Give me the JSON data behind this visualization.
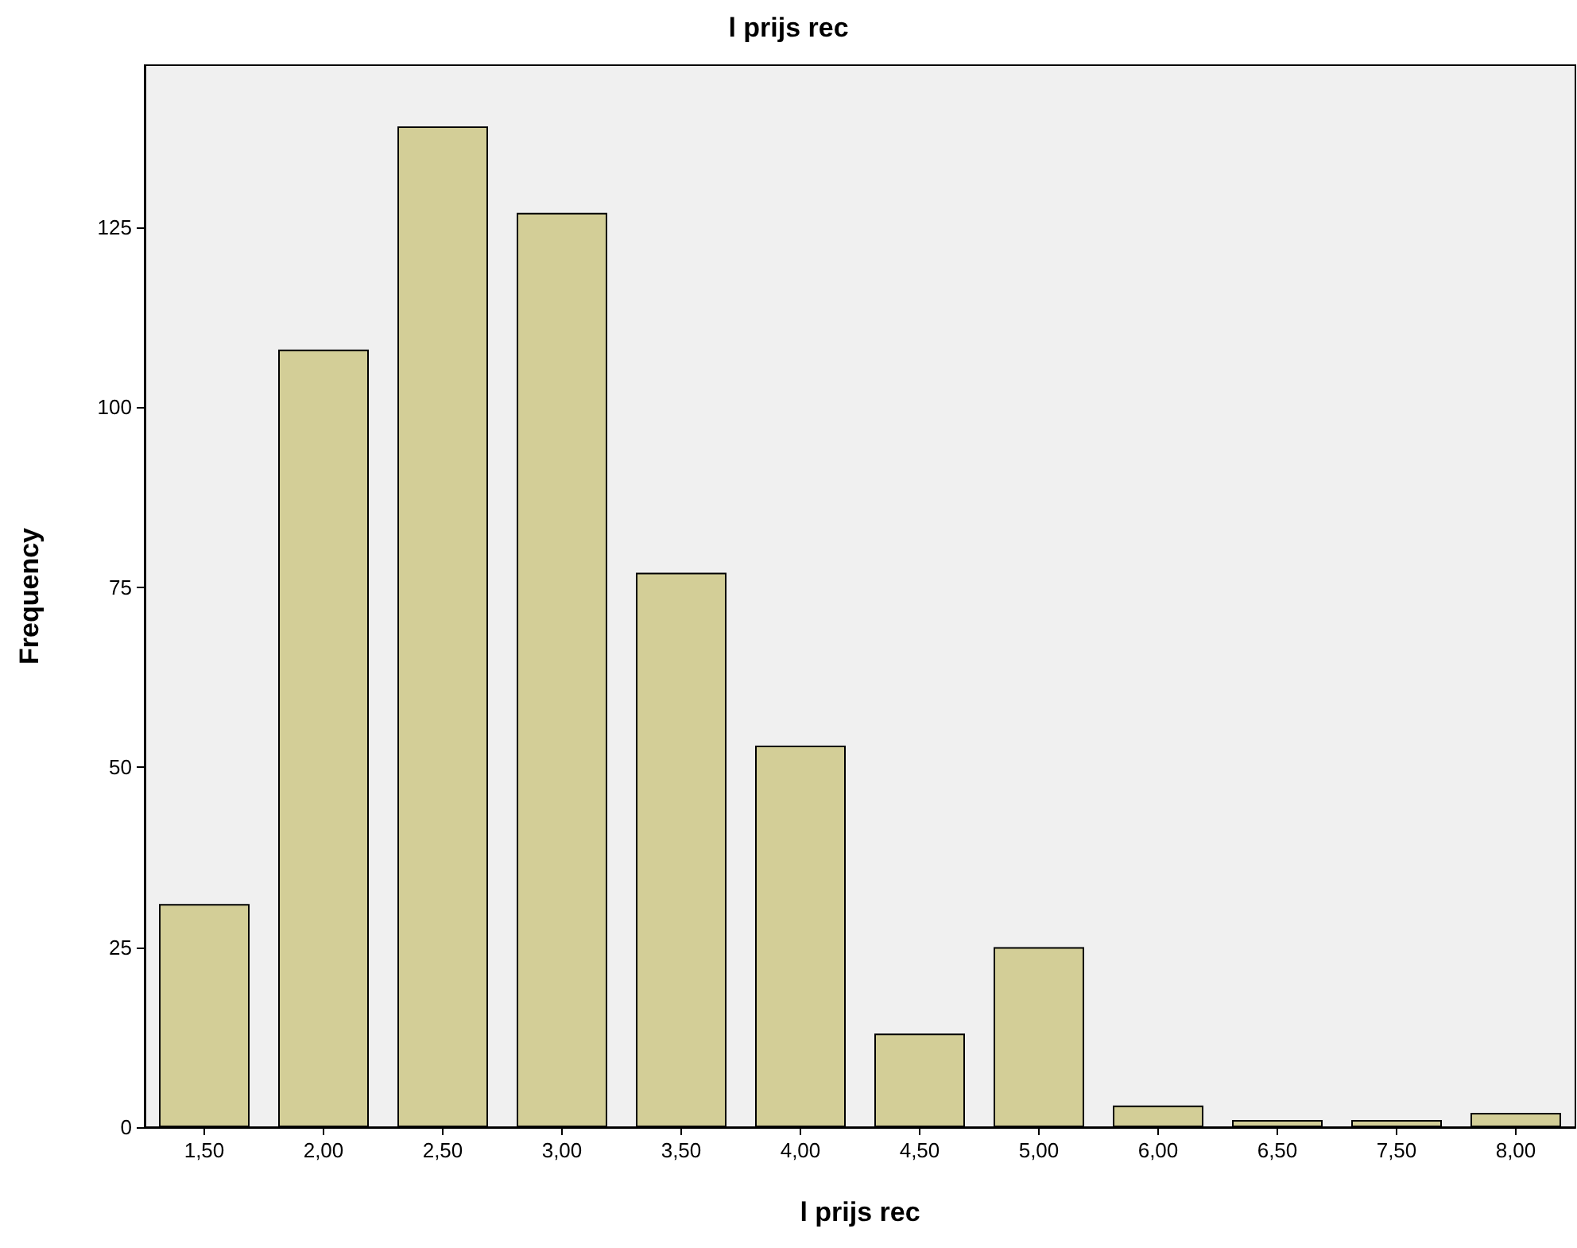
{
  "chart_data": {
    "type": "bar",
    "title": "l prijs rec",
    "xlabel": "l prijs rec",
    "ylabel": "Frequency",
    "categories": [
      "1,50",
      "2,00",
      "2,50",
      "3,00",
      "3,50",
      "4,00",
      "4,50",
      "5,00",
      "6,00",
      "6,50",
      "7,50",
      "8,00"
    ],
    "values": [
      31,
      108,
      139,
      127,
      77,
      53,
      13,
      25,
      3,
      1,
      1,
      2
    ],
    "color": "#d3ce97",
    "ylim": [
      0,
      147.5
    ],
    "yticks": [
      0,
      25,
      50,
      75,
      100,
      125
    ],
    "grid": false
  }
}
